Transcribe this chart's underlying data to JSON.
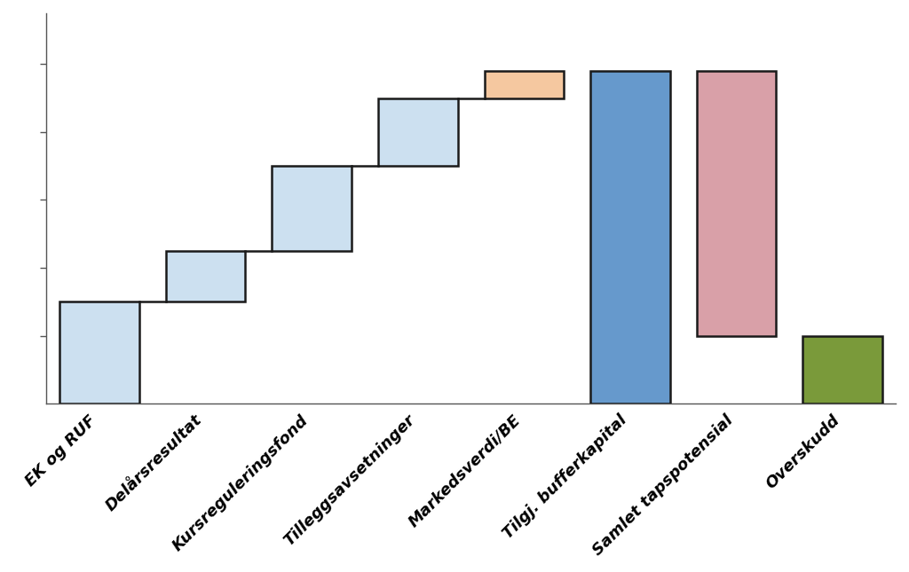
{
  "categories": [
    "EK og RUF",
    "Delårsresultat",
    "Kursreguleringsfond",
    "Tilleggsavsetninger",
    "Markedsverdi/BE",
    "Tilgj. bufferkapital",
    "Samlet tapspotensial",
    "Overskudd"
  ],
  "bottoms": [
    0,
    3,
    4.5,
    7,
    9,
    0,
    2,
    0
  ],
  "heights": [
    3,
    1.5,
    2.5,
    2,
    0.8,
    9.8,
    7.8,
    2
  ],
  "colors": [
    "#cce0f0",
    "#cce0f0",
    "#cce0f0",
    "#cce0f0",
    "#f5c8a0",
    "#6699cc",
    "#d9a0a8",
    "#7a9a3a"
  ],
  "edgecolor": "#1a1a1a",
  "linewidth": 1.8,
  "figsize": [
    10.24,
    6.45
  ],
  "dpi": 100,
  "ylim": [
    0,
    11.5
  ],
  "xlim": [
    -0.5,
    7.5
  ],
  "bar_width": 0.75,
  "tick_label_fontsize": 13,
  "tick_label_fontweight": "bold",
  "tick_label_fontstyle": "italic",
  "background_color": "#ffffff",
  "spine_color": "#555555",
  "connector_pairs": [
    [
      0,
      1
    ],
    [
      1,
      2
    ],
    [
      2,
      3
    ],
    [
      3,
      4
    ]
  ],
  "connector_color": "#1a1a1a",
  "connector_linewidth": 1.8,
  "ytick_positions": [
    2,
    4,
    6,
    8,
    10
  ]
}
